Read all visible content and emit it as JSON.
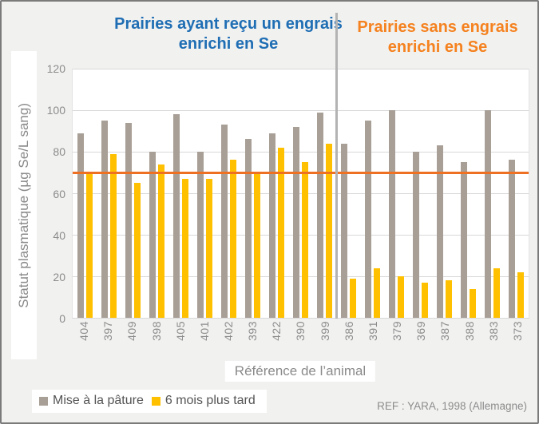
{
  "header": {
    "left_title": "Prairies ayant reçu un engrais enrichi en Se",
    "right_title": "Prairies sans engrais enrichi en Se",
    "left_color": "#1F6EB4",
    "right_color": "#F5821F"
  },
  "chart_data": {
    "type": "bar",
    "categories": [
      "404",
      "397",
      "409",
      "398",
      "405",
      "401",
      "402",
      "393",
      "422",
      "390",
      "399",
      "386",
      "391",
      "379",
      "369",
      "387",
      "388",
      "383",
      "373"
    ],
    "series": [
      {
        "name": "Mise à la pâture",
        "color": "#A89F96",
        "values": [
          89,
          95,
          94,
          80,
          98,
          80,
          93,
          86,
          89,
          92,
          99,
          84,
          95,
          100,
          80,
          83,
          75,
          100,
          76
        ]
      },
      {
        "name": "6 mois plus tard",
        "color": "#FFC000",
        "values": [
          70,
          79,
          65,
          74,
          67,
          67,
          76,
          70,
          82,
          75,
          84,
          19,
          24,
          20,
          17,
          18,
          14,
          24,
          22
        ]
      }
    ],
    "xlabel": "Référence de l’animal",
    "ylabel": "Statut plasmatique (µg Se/L sang)",
    "ylim": [
      0,
      120
    ],
    "yticks": [
      0,
      20,
      40,
      60,
      80,
      100,
      120
    ],
    "grid": true,
    "legend_position": "bottom-left",
    "threshold_line": {
      "value": 70,
      "color": "#EE7023"
    },
    "section_divider": {
      "after_category": "399",
      "color": "#B3B3B3"
    },
    "sections": [
      {
        "title": "Prairies ayant reçu un engrais enrichi en Se",
        "categories_count": 11
      },
      {
        "title": "Prairies sans engrais enrichi en Se",
        "categories_count": 8
      }
    ]
  },
  "footer": {
    "ref_label": "REF : YARA, 1998 (Allemagne)"
  }
}
